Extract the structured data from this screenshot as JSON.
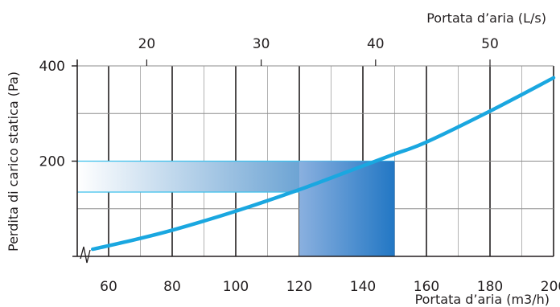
{
  "chart_data": {
    "type": "line",
    "title": "",
    "xlabel": "Portata d’aria (m3/h)",
    "x2label": "Portata d’aria (L/s)",
    "ylabel": "Perdita di carico statica (Pa)",
    "xlim": [
      50,
      200
    ],
    "ylim": [
      0,
      400
    ],
    "x_ticks": [
      "60",
      "80",
      "100",
      "120",
      "140",
      "160",
      "180",
      "200"
    ],
    "x2_ticks": [
      "20",
      "30",
      "40",
      "50"
    ],
    "x2_tick_values_ls": [
      20,
      30,
      40,
      50
    ],
    "y_ticks": [
      "200",
      "400"
    ],
    "y_tick_values": [
      200,
      400
    ],
    "grid": true,
    "axis_break": true,
    "series": [
      {
        "color": "#1aa7e0",
        "x": [
          55,
          65,
          80,
          100,
          120,
          140,
          150,
          160,
          180,
          200
        ],
        "y": [
          15,
          30,
          55,
          95,
          140,
          190,
          215,
          240,
          305,
          375
        ]
      }
    ],
    "shaded_regions": [
      {
        "kind": "horizontal-band",
        "x": [
          50,
          150
        ],
        "y": [
          135,
          200
        ],
        "color_light": "#ffffff",
        "color_dark": "#2f7dc1",
        "border": "#3cc0ec"
      },
      {
        "kind": "vertical-band",
        "x": [
          120,
          150
        ],
        "y": [
          0,
          200
        ],
        "color_light": "#8ab0df",
        "color_dark": "#2277c4"
      }
    ]
  }
}
